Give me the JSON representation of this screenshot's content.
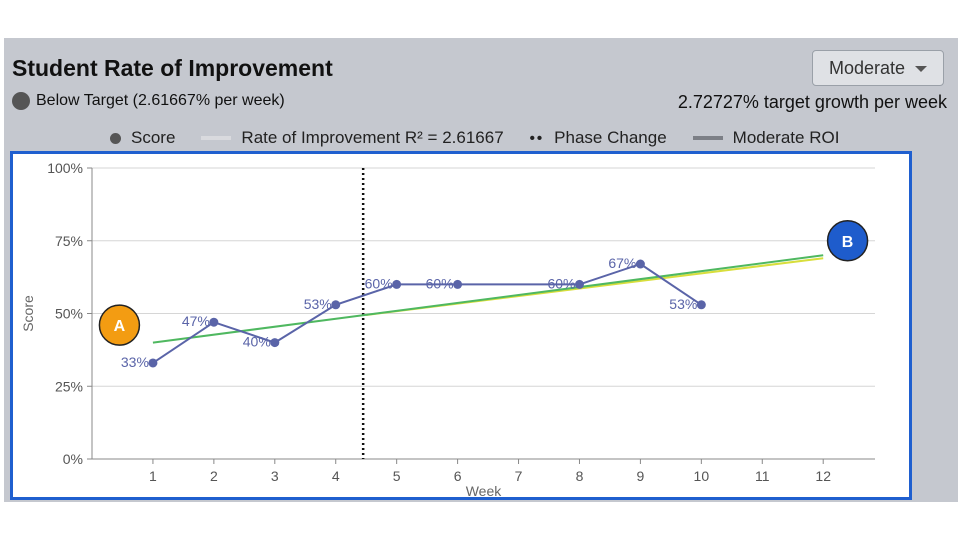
{
  "title": "Student Rate of Improvement",
  "dropdown": {
    "selected": "Moderate"
  },
  "status": {
    "text": "Below Target (2.61667% per week)"
  },
  "target_text": "2.72727% target growth per week",
  "legend": {
    "score": "Score",
    "roi": "Rate of Improvement R² = 2.61667",
    "phase": "Phase Change",
    "moderate": "Moderate ROI"
  },
  "colors": {
    "score": "#5a64a8",
    "roi": "#4fb860",
    "moderate": "#d8de3c",
    "marker_a": "#f39c12",
    "marker_b": "#1e5ccc",
    "frame": "#1f5fcf"
  },
  "markers": {
    "a": "A",
    "b": "B"
  },
  "chart_data": {
    "type": "line",
    "title": "",
    "xlabel": "Week",
    "ylabel": "Score",
    "xlim": [
      0,
      12.85
    ],
    "ylim": [
      0,
      100
    ],
    "x_ticks": [
      1,
      2,
      3,
      4,
      5,
      6,
      7,
      8,
      9,
      10,
      11,
      12
    ],
    "y_ticks": [
      0,
      25,
      50,
      75,
      100
    ],
    "y_tick_labels": [
      "0%",
      "25%",
      "50%",
      "75%",
      "100%"
    ],
    "grid": true,
    "series": [
      {
        "name": "Score",
        "x": [
          1,
          2,
          3,
          4,
          5,
          6,
          8,
          9,
          10
        ],
        "values": [
          33,
          47,
          40,
          53,
          60,
          60,
          60,
          67,
          53
        ],
        "labels": [
          "33%",
          "47%",
          "40%",
          "53%",
          "60%",
          "60%",
          "60%",
          "67%",
          "53%"
        ]
      },
      {
        "name": "Rate of Improvement",
        "x": [
          1,
          12
        ],
        "values": [
          40,
          70
        ]
      },
      {
        "name": "Moderate ROI",
        "x": [
          4.5,
          12
        ],
        "values": [
          49.5,
          69
        ]
      }
    ],
    "phase_change_x": 4.45,
    "marker_a_week": 0.45,
    "marker_a_score": 46,
    "marker_b_week": 12.4,
    "marker_b_score": 75
  }
}
